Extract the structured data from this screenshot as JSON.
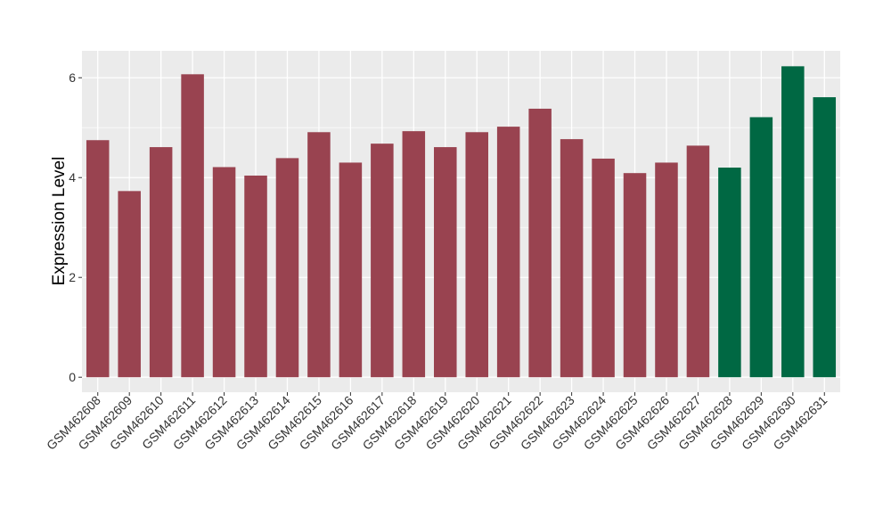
{
  "chart_data": {
    "type": "bar",
    "y_label": "Expression Level",
    "categories": [
      "GSM462608",
      "GSM462609",
      "GSM462610",
      "GSM462611",
      "GSM462612",
      "GSM462613",
      "GSM462614",
      "GSM462615",
      "GSM462616",
      "GSM462617",
      "GSM462618",
      "GSM462619",
      "GSM462620",
      "GSM462621",
      "GSM462622",
      "GSM462623",
      "GSM462624",
      "GSM462625",
      "GSM462626",
      "GSM462627",
      "GSM462628",
      "GSM462629",
      "GSM462630",
      "GSM462631"
    ],
    "values": [
      4.75,
      3.73,
      4.61,
      6.07,
      4.21,
      4.04,
      4.39,
      4.91,
      4.3,
      4.68,
      4.93,
      4.61,
      4.91,
      5.02,
      5.38,
      4.77,
      4.38,
      4.09,
      4.3,
      4.64,
      4.2,
      5.21,
      6.23,
      5.61
    ],
    "colors": [
      "#994350",
      "#994350",
      "#994350",
      "#994350",
      "#994350",
      "#994350",
      "#994350",
      "#994350",
      "#994350",
      "#994350",
      "#994350",
      "#994350",
      "#994350",
      "#994350",
      "#994350",
      "#994350",
      "#994350",
      "#994350",
      "#994350",
      "#994350",
      "#006843",
      "#006843",
      "#006843",
      "#006843"
    ],
    "ylim": [
      -0.3,
      6.54
    ],
    "yticks": [
      0,
      2,
      4,
      6
    ],
    "minor_yticks": [
      1,
      3,
      5
    ],
    "grid": true
  }
}
